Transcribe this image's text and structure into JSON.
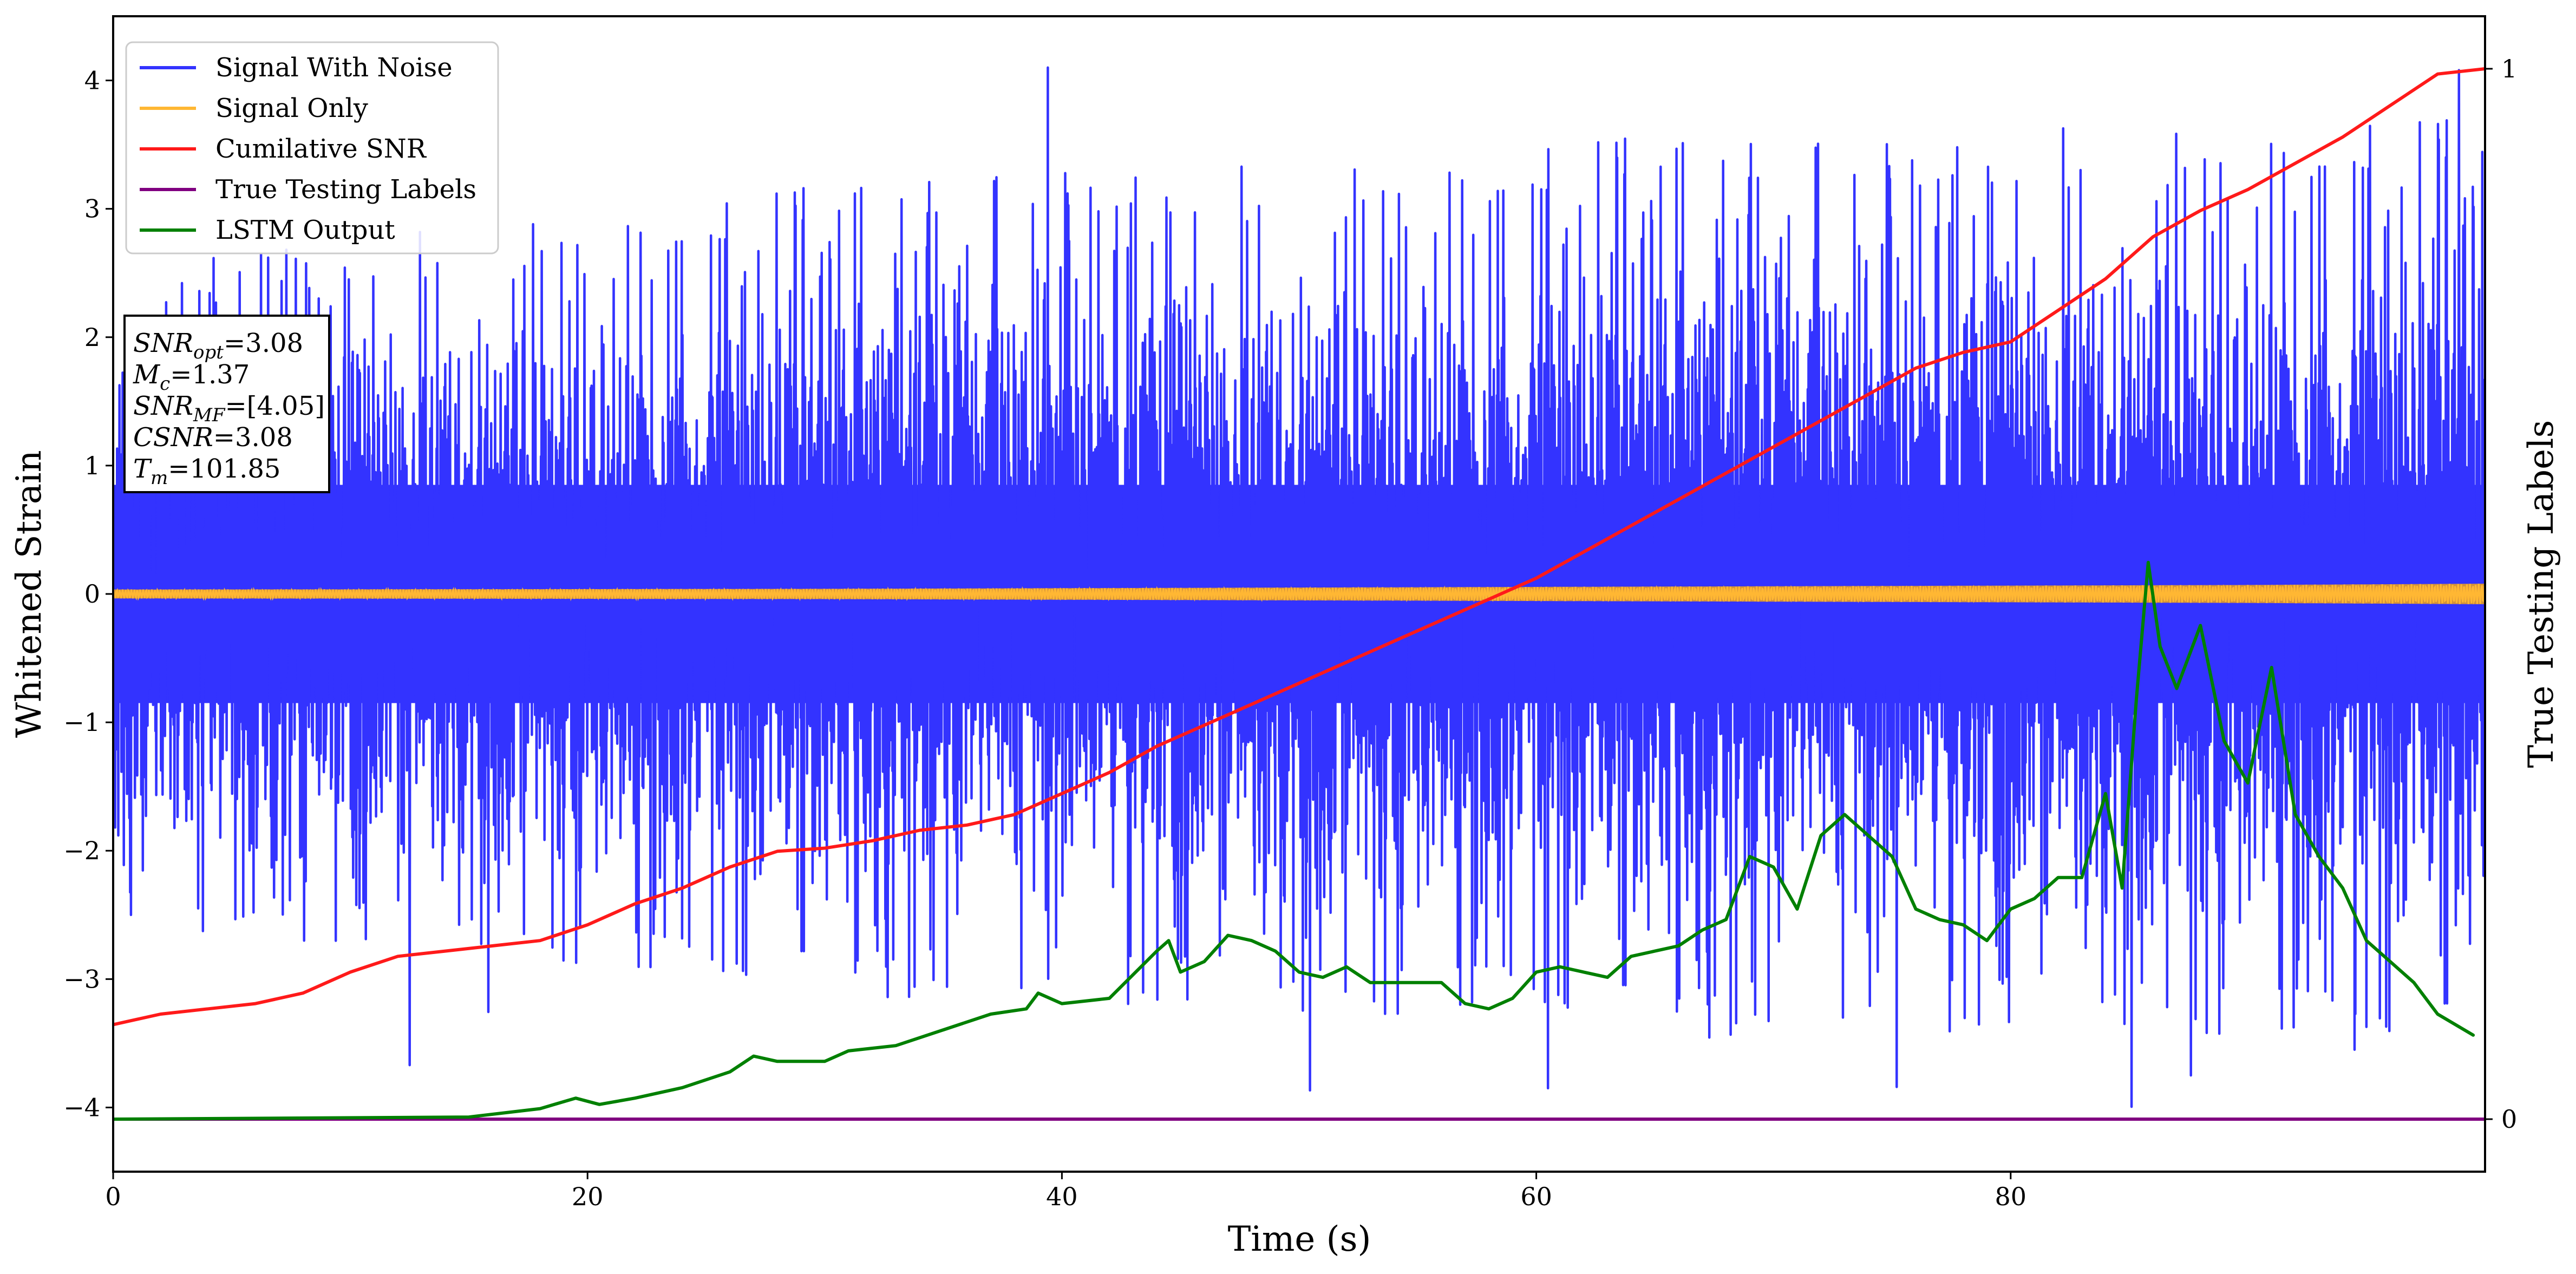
{
  "chart_data": {
    "type": "line",
    "xlabel": "Time (s)",
    "ylabel": "Whitened Strain",
    "y2label": "True Testing Labels",
    "xlim": [
      0,
      100
    ],
    "ylim": [
      -4.5,
      4.5
    ],
    "y2lim": [
      -0.05,
      1.05
    ],
    "xticks": [
      0,
      20,
      40,
      60,
      80
    ],
    "yticks": [
      -4,
      -3,
      -2,
      -1,
      0,
      1,
      2,
      3,
      4
    ],
    "y2ticks": [
      0,
      1
    ],
    "grid": false,
    "legend_position": "top-left",
    "legend": [
      {
        "label": "Signal With Noise",
        "color": "#3333ff"
      },
      {
        "label": "Signal Only",
        "color": "#ffb733"
      },
      {
        "label": "Cumilative SNR",
        "color": "#ff1a1a"
      },
      {
        "label": "True Testing Labels",
        "color": "#800080"
      },
      {
        "label": "LSTM Output",
        "color": "#008000"
      }
    ],
    "annotation": {
      "lines": [
        {
          "sym": "SNR",
          "sub": "opt",
          "rest": "=3.08"
        },
        {
          "sym": "M",
          "sub": "c",
          "rest": "=1.37"
        },
        {
          "sym": "SNR",
          "sub": "MF",
          "rest": "=[4.05]"
        },
        {
          "sym": "CSNR",
          "sub": "",
          "rest": "=3.08"
        },
        {
          "sym": "T",
          "sub": "m",
          "rest": "=101.85"
        }
      ]
    },
    "series": [
      {
        "name": "Signal With Noise",
        "color": "#3333ff",
        "axis": "left",
        "style": "dense-noise",
        "envelope_upper": [
          2.4,
          2.6,
          2.8,
          2.9,
          3.1,
          3.2,
          3.2,
          3.3,
          3.4,
          3.4,
          3.5,
          3.5,
          3.5
        ],
        "envelope_lower": [
          -2.5,
          -2.6,
          -2.7,
          -2.9,
          -3.0,
          -3.0,
          -3.2,
          -3.1,
          -3.3,
          -3.2,
          -3.3,
          -3.3,
          -3.4
        ],
        "peaks": [
          [
            39.4,
            4.1
          ],
          [
            98.9,
            4.08
          ],
          [
            12.5,
            -3.67
          ],
          [
            60.5,
            -3.85
          ],
          [
            75.2,
            -3.84
          ],
          [
            87.6,
            -3.75
          ],
          [
            94.5,
            -3.55
          ]
        ]
      },
      {
        "name": "Signal Only",
        "color": "#ffb733",
        "axis": "left",
        "style": "chirp-band",
        "x": [
          0,
          10,
          20,
          30,
          40,
          50,
          60,
          70,
          80,
          90,
          100
        ],
        "amplitude": [
          0.035,
          0.036,
          0.038,
          0.04,
          0.045,
          0.05,
          0.055,
          0.06,
          0.065,
          0.07,
          0.08
        ]
      },
      {
        "name": "Cumilative SNR",
        "color": "#ff1a1a",
        "axis": "right",
        "x": [
          0,
          2,
          4,
          6,
          8,
          10,
          12,
          14,
          16,
          18,
          20,
          22,
          24,
          26,
          28,
          30,
          32,
          34,
          36,
          38,
          40,
          42,
          44,
          46,
          48,
          50,
          52,
          54,
          56,
          58,
          60,
          62,
          64,
          66,
          68,
          70,
          72,
          74,
          76,
          78,
          80,
          82,
          84,
          86,
          88,
          90,
          92,
          94,
          96,
          98,
          100
        ],
        "y": [
          0.09,
          0.1,
          0.105,
          0.11,
          0.12,
          0.14,
          0.155,
          0.16,
          0.165,
          0.17,
          0.185,
          0.205,
          0.22,
          0.24,
          0.255,
          0.258,
          0.265,
          0.275,
          0.28,
          0.29,
          0.31,
          0.33,
          0.355,
          0.375,
          0.395,
          0.415,
          0.435,
          0.455,
          0.475,
          0.495,
          0.515,
          0.54,
          0.565,
          0.59,
          0.615,
          0.64,
          0.665,
          0.69,
          0.715,
          0.73,
          0.74,
          0.77,
          0.8,
          0.84,
          0.865,
          0.885,
          0.91,
          0.935,
          0.965,
          0.995,
          1.0
        ]
      },
      {
        "name": "True Testing Labels",
        "color": "#800080",
        "axis": "right",
        "x": [
          0,
          100
        ],
        "y": [
          0,
          0
        ]
      },
      {
        "name": "LSTM Output",
        "color": "#008000",
        "axis": "right",
        "x": [
          0,
          15,
          18,
          19.5,
          20.5,
          22,
          24,
          26,
          27,
          28,
          30,
          31,
          33,
          35,
          37,
          38.5,
          39,
          40,
          42,
          44,
          44.5,
          45,
          46,
          47,
          48,
          49,
          50,
          51,
          52,
          53,
          54,
          56,
          57,
          58,
          59,
          60,
          61,
          62,
          63,
          64,
          65,
          66,
          67,
          68,
          69,
          70,
          71,
          72,
          73,
          74,
          75,
          76,
          77,
          78,
          79,
          80,
          81,
          82,
          83,
          84,
          84.7,
          85.3,
          85.8,
          86.3,
          87,
          88,
          89,
          90,
          91,
          92,
          93,
          94,
          95,
          96,
          97,
          98,
          99.5
        ],
        "y": [
          0.0,
          0.002,
          0.01,
          0.02,
          0.014,
          0.02,
          0.03,
          0.045,
          0.06,
          0.055,
          0.055,
          0.065,
          0.07,
          0.085,
          0.1,
          0.105,
          0.12,
          0.11,
          0.115,
          0.16,
          0.17,
          0.14,
          0.15,
          0.175,
          0.17,
          0.16,
          0.14,
          0.135,
          0.145,
          0.13,
          0.13,
          0.13,
          0.11,
          0.105,
          0.115,
          0.14,
          0.145,
          0.14,
          0.135,
          0.155,
          0.16,
          0.165,
          0.18,
          0.19,
          0.25,
          0.24,
          0.2,
          0.27,
          0.29,
          0.27,
          0.25,
          0.2,
          0.19,
          0.185,
          0.17,
          0.2,
          0.21,
          0.23,
          0.23,
          0.31,
          0.22,
          0.4,
          0.53,
          0.45,
          0.41,
          0.47,
          0.36,
          0.32,
          0.43,
          0.29,
          0.25,
          0.22,
          0.17,
          0.15,
          0.13,
          0.1,
          0.08
        ]
      }
    ]
  }
}
